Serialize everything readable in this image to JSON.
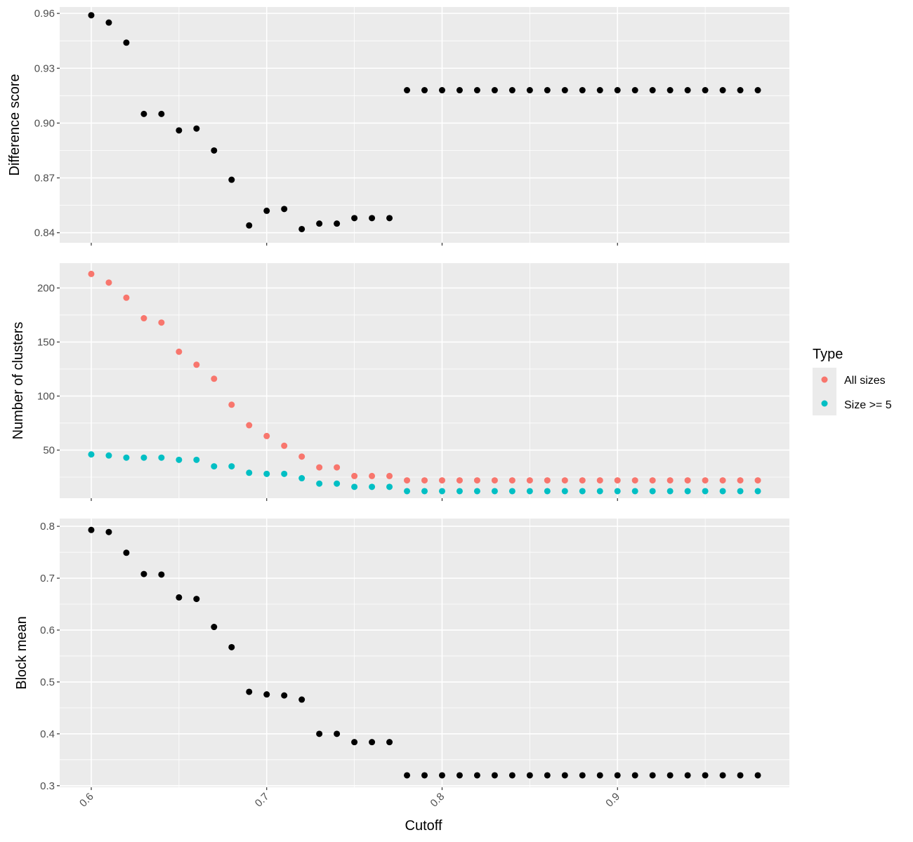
{
  "chart_data": {
    "type": "scatter",
    "xlabel": "Cutoff",
    "x_ticks": [
      0.6,
      0.7,
      0.8,
      0.9
    ],
    "x_tick_labels": [
      "0.6",
      "0.7",
      "0.8",
      "0.9"
    ],
    "xlim": [
      0.582,
      0.998
    ],
    "x_minor_gridlines": [
      0.65,
      0.75,
      0.85,
      0.95
    ],
    "grid": true,
    "background": "#ebebeb",
    "gridline_color": "#ffffff",
    "x": [
      0.6,
      0.61,
      0.62,
      0.63,
      0.64,
      0.65,
      0.66,
      0.67,
      0.68,
      0.69,
      0.7,
      0.71,
      0.72,
      0.73,
      0.74,
      0.75,
      0.76,
      0.77,
      0.78,
      0.79,
      0.8,
      0.81,
      0.82,
      0.83,
      0.84,
      0.85,
      0.86,
      0.87,
      0.88,
      0.89,
      0.9,
      0.91,
      0.92,
      0.93,
      0.94,
      0.95,
      0.96,
      0.97,
      0.98
    ],
    "panels": [
      {
        "ylabel": "Difference score",
        "ylim": [
          0.8345,
          0.9635
        ],
        "y_ticks": [
          0.84,
          0.87,
          0.9,
          0.93,
          0.96
        ],
        "y_tick_labels": [
          "0.84",
          "0.87",
          "0.90",
          "0.93",
          "0.96"
        ],
        "series": [
          {
            "color": "#000000",
            "values": [
              0.959,
              0.955,
              0.944,
              0.905,
              0.905,
              0.896,
              0.897,
              0.885,
              0.869,
              0.844,
              0.852,
              0.853,
              0.842,
              0.845,
              0.845,
              0.848,
              0.848,
              0.848,
              0.918,
              0.918,
              0.918,
              0.918,
              0.918,
              0.918,
              0.918,
              0.918,
              0.918,
              0.918,
              0.918,
              0.918,
              0.918,
              0.918,
              0.918,
              0.918,
              0.918,
              0.918,
              0.918,
              0.918,
              0.918
            ]
          }
        ]
      },
      {
        "ylabel": "Number of clusters",
        "ylim": [
          5.5,
          223
        ],
        "y_ticks": [
          50,
          100,
          150,
          200
        ],
        "y_tick_labels": [
          "50",
          "100",
          "150",
          "200"
        ],
        "series": [
          {
            "name": "All sizes",
            "color": "#f8766d",
            "values": [
              213,
              205,
              191,
              172,
              168,
              141,
              129,
              116,
              92,
              73,
              63,
              54,
              44,
              34,
              34,
              26,
              26,
              26,
              22,
              22,
              22,
              22,
              22,
              22,
              22,
              22,
              22,
              22,
              22,
              22,
              22,
              22,
              22,
              22,
              22,
              22,
              22,
              22,
              22
            ]
          },
          {
            "name": "Size >= 5",
            "color": "#00bfc4",
            "values": [
              46,
              45,
              43,
              43,
              43,
              41,
              41,
              35,
              35,
              29,
              28,
              28,
              24,
              19,
              19,
              16,
              16,
              16,
              12,
              12,
              12,
              12,
              12,
              12,
              12,
              12,
              12,
              12,
              12,
              12,
              12,
              12,
              12,
              12,
              12,
              12,
              12,
              12,
              12
            ]
          }
        ]
      },
      {
        "ylabel": "Block mean",
        "ylim": [
          0.297,
          0.815
        ],
        "y_ticks": [
          0.3,
          0.4,
          0.5,
          0.6,
          0.7,
          0.8
        ],
        "y_tick_labels": [
          "0.3",
          "0.4",
          "0.5",
          "0.6",
          "0.7",
          "0.8"
        ],
        "series": [
          {
            "color": "#000000",
            "values": [
              0.793,
              0.789,
              0.749,
              0.708,
              0.707,
              0.663,
              0.66,
              0.606,
              0.567,
              0.481,
              0.476,
              0.474,
              0.466,
              0.4,
              0.4,
              0.384,
              0.384,
              0.384,
              0.32,
              0.32,
              0.32,
              0.32,
              0.32,
              0.32,
              0.32,
              0.32,
              0.32,
              0.32,
              0.32,
              0.32,
              0.32,
              0.32,
              0.32,
              0.32,
              0.32,
              0.32,
              0.32,
              0.32,
              0.32
            ]
          }
        ]
      }
    ],
    "legend": {
      "title": "Type",
      "position": "right",
      "items": [
        {
          "label": "All sizes",
          "color": "#f8766d"
        },
        {
          "label": "Size >= 5",
          "color": "#00bfc4"
        }
      ]
    }
  }
}
